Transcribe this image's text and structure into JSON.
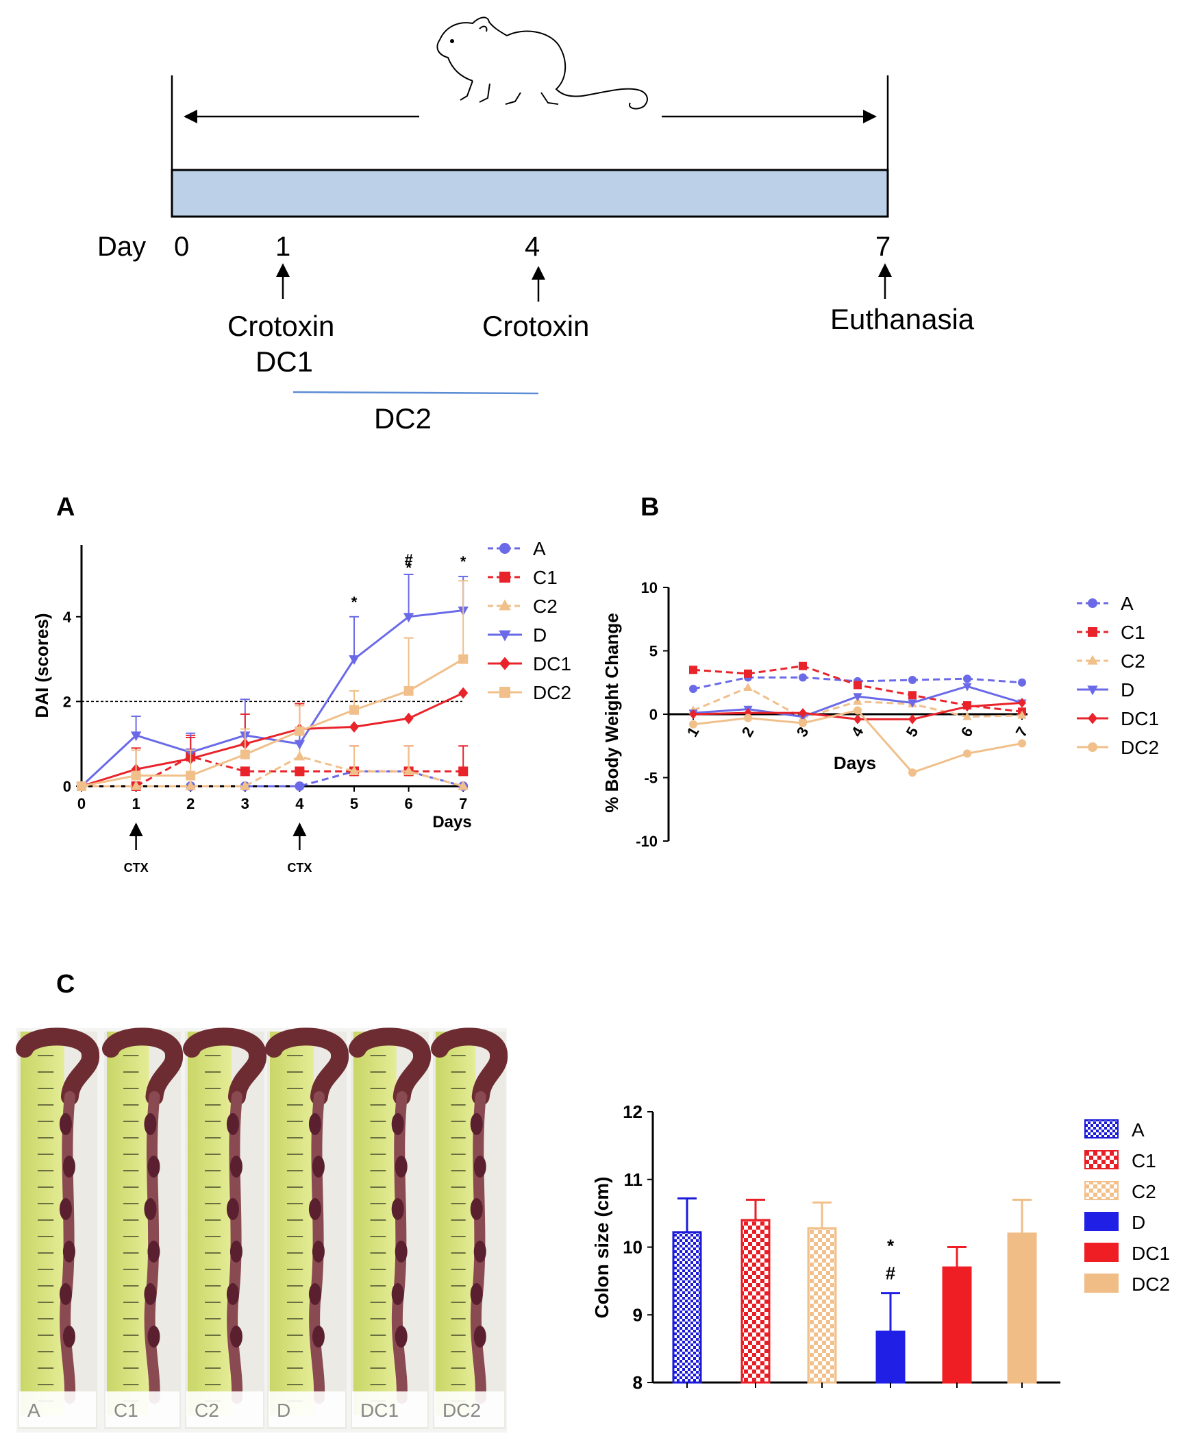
{
  "colors": {
    "A": "#6a6ae8",
    "C1": "#e8232a",
    "C2": "#f0bf8a",
    "D": "#6a6ae8",
    "DC1": "#e8232a",
    "DC2": "#f0bf8a",
    "bar_A": "#1a1ad8",
    "bar_C1": "#e81e26",
    "bar_C2": "#f2c08a",
    "bar_D": "#1f1fe6",
    "bar_DC1": "#ef1e24",
    "bar_DC2": "#f0bd86",
    "timeline_fill": "#bcd0e8",
    "dc2_line": "#5b8bd4"
  },
  "timeline": {
    "day_label": "Day",
    "ticks": [
      "0",
      "1",
      "4",
      "7"
    ],
    "events": [
      "Crotoxin",
      "DC1",
      "Crotoxin",
      "Euthanasia"
    ],
    "dc2_label": "DC2",
    "mouse_icon": "mouse-illustration"
  },
  "panels": {
    "A": "A",
    "B": "B",
    "C": "C"
  },
  "photo": {
    "labels": [
      "A",
      "C1",
      "C2",
      "D",
      "DC1",
      "DC2"
    ]
  },
  "chart_data": [
    {
      "id": "panel-A",
      "type": "line",
      "title": "",
      "xlabel": "Days",
      "ylabel": "DAI (scores)",
      "x": [
        0,
        1,
        2,
        3,
        4,
        5,
        6,
        7
      ],
      "xlim": [
        0,
        7
      ],
      "ylim": [
        0,
        5.5
      ],
      "yticks": [
        0,
        2,
        4
      ],
      "reference_line": 2,
      "annotations": [
        {
          "x": 1,
          "text": "CTX"
        },
        {
          "x": 4,
          "text": "CTX"
        },
        {
          "x": 5,
          "text": "*"
        },
        {
          "x": 6,
          "text": "#"
        },
        {
          "x": 7,
          "text": "*"
        }
      ],
      "series": [
        {
          "name": "A",
          "style": "dashed",
          "marker": "circle",
          "values": [
            0,
            0,
            0,
            0,
            0,
            0.35,
            0.35,
            0.0
          ],
          "errors": [
            0,
            0,
            0,
            0,
            0,
            0,
            0,
            0
          ]
        },
        {
          "name": "C1",
          "style": "dashed",
          "marker": "square",
          "values": [
            0,
            0,
            0.7,
            0.35,
            0.35,
            0.35,
            0.35,
            0.35
          ],
          "errors": [
            0,
            0,
            0.5,
            0,
            0,
            0.6,
            0.6,
            0.6
          ]
        },
        {
          "name": "C2",
          "style": "dashed",
          "marker": "triangle",
          "values": [
            0,
            0,
            0,
            0,
            0.7,
            0.35,
            0.35,
            0.0
          ],
          "errors": [
            0,
            0,
            0,
            0,
            0.6,
            0.6,
            0.6,
            0
          ]
        },
        {
          "name": "D",
          "style": "solid",
          "marker": "triangle-down",
          "values": [
            0,
            1.2,
            0.8,
            1.2,
            1.0,
            3.0,
            4.0,
            4.15
          ],
          "errors": [
            0,
            0.45,
            0.45,
            0.85,
            0.35,
            1.0,
            1.0,
            0.8
          ]
        },
        {
          "name": "DC1",
          "style": "solid",
          "marker": "diamond",
          "values": [
            0,
            0.4,
            0.65,
            1.0,
            1.35,
            1.4,
            1.6,
            2.2
          ],
          "errors": [
            0,
            0.5,
            0.5,
            0.7,
            0.6,
            0,
            0,
            0
          ]
        },
        {
          "name": "DC2",
          "style": "solid",
          "marker": "square",
          "values": [
            0,
            0.25,
            0.25,
            0.75,
            1.3,
            1.8,
            2.25,
            3.0
          ],
          "errors": [
            0,
            0.6,
            0.6,
            0.6,
            0.6,
            0.45,
            1.25,
            1.85
          ]
        }
      ]
    },
    {
      "id": "panel-B",
      "type": "line",
      "title": "",
      "xlabel": "Days",
      "ylabel": "% Body Weight Change",
      "x": [
        1,
        2,
        3,
        4,
        5,
        6,
        7
      ],
      "ylim": [
        -10,
        10
      ],
      "yticks": [
        10,
        5,
        0,
        -5,
        -10
      ],
      "series": [
        {
          "name": "A",
          "style": "dashed",
          "marker": "circle",
          "values": [
            2.0,
            2.9,
            2.9,
            2.6,
            2.7,
            2.8,
            2.5
          ]
        },
        {
          "name": "C1",
          "style": "dashed",
          "marker": "square",
          "values": [
            3.5,
            3.2,
            3.8,
            2.3,
            1.5,
            0.7,
            0.2
          ]
        },
        {
          "name": "C2",
          "style": "dashed",
          "marker": "triangle",
          "values": [
            0.3,
            2.1,
            -0.3,
            1.0,
            0.8,
            -0.2,
            -0.1
          ]
        },
        {
          "name": "D",
          "style": "solid",
          "marker": "triangle-down",
          "values": [
            0.1,
            0.4,
            -0.2,
            1.4,
            0.9,
            2.2,
            0.9
          ]
        },
        {
          "name": "DC1",
          "style": "solid",
          "marker": "diamond",
          "values": [
            0.0,
            0.1,
            0.1,
            -0.4,
            -0.4,
            0.6,
            0.9
          ]
        },
        {
          "name": "DC2",
          "style": "solid",
          "marker": "circle",
          "values": [
            -0.8,
            -0.3,
            -0.7,
            0.3,
            -4.6,
            -3.1,
            -2.3
          ]
        }
      ]
    },
    {
      "id": "panel-C",
      "type": "bar",
      "title": "",
      "xlabel": "",
      "ylabel": "Colon size (cm)",
      "categories": [
        "A",
        "C1",
        "C2",
        "D",
        "DC1",
        "DC2"
      ],
      "values": [
        10.22,
        10.4,
        10.28,
        8.75,
        9.7,
        10.2
      ],
      "errors": [
        0.5,
        0.3,
        0.38,
        0.57,
        0.3,
        0.5
      ],
      "ylim": [
        8,
        12
      ],
      "yticks": [
        8,
        9,
        10,
        11,
        12
      ],
      "patterns": [
        "fine-check",
        "check",
        "light-check",
        "solid",
        "solid",
        "solid"
      ],
      "annotations": [
        {
          "category": "D",
          "text": "*"
        },
        {
          "category": "D",
          "text": "#"
        }
      ]
    }
  ]
}
